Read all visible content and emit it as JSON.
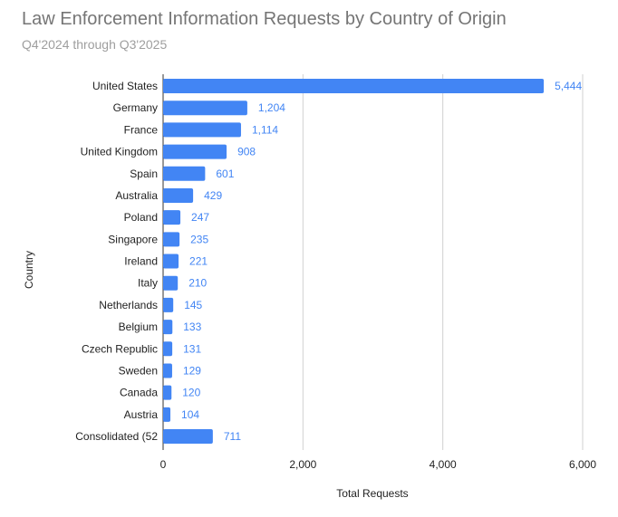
{
  "chart_data": {
    "type": "bar",
    "orientation": "horizontal",
    "title": "Law Enforcement Information Requests by Country of Origin",
    "subtitle": "Q4'2024 through Q3'2025",
    "xlabel": "Total Requests",
    "ylabel": "Country",
    "xlim": [
      0,
      6000
    ],
    "xticks": [
      "0",
      "2,000",
      "4,000",
      "6,000"
    ],
    "grid": true,
    "legend": "none",
    "bar_color": "#4285f4",
    "label_color": "#4285f4",
    "categories": [
      "United States",
      "Germany",
      "France",
      "United Kingdom",
      "Spain",
      "Australia",
      "Poland",
      "Singapore",
      "Ireland",
      "Italy",
      "Netherlands",
      "Belgium",
      "Czech Republic",
      "Sweden",
      "Canada",
      "Austria",
      "Consolidated (52"
    ],
    "values": [
      5444,
      1204,
      1114,
      908,
      601,
      429,
      247,
      235,
      221,
      210,
      145,
      133,
      131,
      129,
      120,
      104,
      711
    ],
    "data_labels": [
      "5,444",
      "1,204",
      "1,114",
      "908",
      "601",
      "429",
      "247",
      "235",
      "221",
      "210",
      "145",
      "133",
      "131",
      "129",
      "120",
      "104",
      "711"
    ]
  }
}
